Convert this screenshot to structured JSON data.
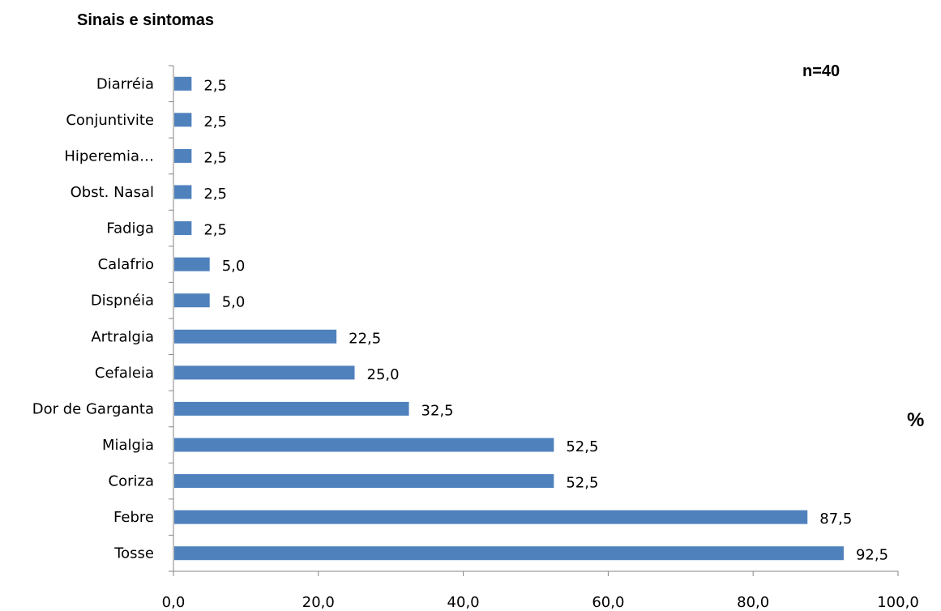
{
  "chart_data": {
    "type": "bar",
    "orientation": "horizontal",
    "title": "Sinais e sintomas",
    "annotation": "n=40",
    "xlabel": "%",
    "ylabel": "",
    "categories": [
      "Tosse",
      "Febre",
      "Coriza",
      "Mialgia",
      "Dor de Garganta",
      "Cefaleia",
      "Artralgia",
      "Dispnéia",
      "Calafrio",
      "Fadiga",
      "Obst. Nasal",
      "Hiperemia…",
      "Conjuntivite",
      "Diarréia"
    ],
    "values": [
      92.5,
      87.5,
      52.5,
      52.5,
      32.5,
      25.0,
      22.5,
      5.0,
      5.0,
      2.5,
      2.5,
      2.5,
      2.5,
      2.5
    ],
    "value_labels": [
      "92,5",
      "87,5",
      "52,5",
      "52,5",
      "32,5",
      "25,0",
      "22,5",
      "5,0",
      "5,0",
      "2,5",
      "2,5",
      "2,5",
      "2,5",
      "2,5"
    ],
    "xlim": [
      0,
      100
    ],
    "xticks": [
      0,
      20,
      40,
      60,
      80,
      100
    ],
    "xtick_labels": [
      "0,0",
      "20,0",
      "40,0",
      "60,0",
      "80,0",
      "100,0"
    ],
    "grid": false,
    "legend": "none",
    "bar_color": "#4F81BD",
    "axis_color": "#868686"
  }
}
